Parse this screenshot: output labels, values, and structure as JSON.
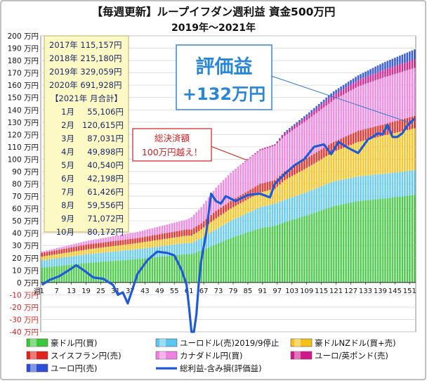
{
  "chart_data": {
    "type": "bar",
    "title": "【毎週更新】ループイフダン週利益 資金500万円",
    "subtitle": "2019年〜2021年",
    "y_unit": "万円",
    "ylim": [
      -40,
      200
    ],
    "ytick_step": 10,
    "x_tick_labels": [
      "1",
      "7",
      "13",
      "19",
      "25",
      "31",
      "37",
      "43",
      "49",
      "55",
      "61",
      "67",
      "73",
      "79",
      "85",
      "91",
      "97",
      "103",
      "109",
      "115",
      "121",
      "127",
      "133",
      "139",
      "145",
      "151"
    ],
    "week_count": 153,
    "stack_checkpoints": {
      "weeks": [
        1,
        20,
        40,
        60,
        62,
        66,
        72,
        78,
        90,
        96,
        100,
        110,
        120,
        130,
        140,
        153
      ],
      "aud": [
        12,
        16,
        19,
        23,
        23,
        26,
        31,
        36,
        44,
        46,
        49,
        55,
        62,
        66,
        68,
        71
      ],
      "eur_sell": [
        6,
        7,
        8,
        9,
        9,
        10,
        12,
        14,
        17,
        18,
        18,
        19,
        20,
        20,
        20,
        20
      ],
      "audnzd": [
        3,
        4,
        5,
        6,
        6,
        7,
        9,
        10,
        12,
        12,
        16,
        20,
        24,
        28,
        31,
        34
      ],
      "chf": [
        3,
        4,
        4,
        5,
        5,
        5,
        6,
        6,
        7,
        7,
        7,
        8,
        8,
        9,
        9,
        10
      ],
      "cad": [
        1,
        3,
        5,
        8,
        10,
        13,
        19,
        23,
        27,
        28,
        29,
        31,
        34,
        36,
        38,
        39
      ],
      "eurgbp": [
        0,
        0,
        0,
        0,
        0,
        0,
        0,
        0,
        1,
        1,
        2,
        3,
        4,
        5,
        6,
        7
      ],
      "eur_buy": [
        0,
        0,
        0,
        0,
        0,
        0,
        0,
        0,
        0,
        0,
        1,
        2,
        3,
        4,
        6,
        8
      ]
    },
    "total_line": {
      "weeks": [
        1,
        4,
        8,
        12,
        15,
        18,
        22,
        26,
        30,
        32,
        34,
        36,
        38,
        40,
        44,
        48,
        52,
        55,
        58,
        60,
        61,
        62,
        63,
        64,
        65,
        66,
        68,
        70,
        72,
        74,
        76,
        80,
        85,
        90,
        94,
        96,
        100,
        104,
        108,
        112,
        116,
        119,
        122,
        126,
        130,
        134,
        136,
        138,
        140,
        142,
        144,
        146,
        148,
        150,
        153
      ],
      "values": [
        -2,
        2,
        5,
        10,
        14,
        10,
        4,
        3,
        -2,
        -10,
        -8,
        -17,
        -5,
        7,
        18,
        25,
        24,
        22,
        10,
        -2,
        -20,
        -40,
        -40,
        -26,
        0,
        18,
        40,
        72,
        66,
        64,
        70,
        66,
        71,
        72,
        69,
        80,
        88,
        95,
        100,
        110,
        112,
        104,
        114,
        109,
        105,
        116,
        118,
        121,
        120,
        128,
        118,
        118,
        121,
        127,
        133
      ]
    },
    "legend": [
      {
        "name": "豪ドル円(買)",
        "color": "#3cc83c"
      },
      {
        "name": "ユーロドル(売)2019/9停止",
        "color": "#5bc6ee"
      },
      {
        "name": "豪ドルNZドル(買+売)",
        "color": "#f5c018"
      },
      {
        "name": "スイスフラン円(売)",
        "color": "#e0241e"
      },
      {
        "name": "カナダドル円(買)",
        "color": "#ee82e0"
      },
      {
        "name": "ユーロ/英ポンド(売)",
        "color": "#d0198a"
      },
      {
        "name": "ユーロ円(売)",
        "color": "#2d4fd8"
      },
      {
        "name": "総利益-含み損(評価益)",
        "color": "#1f5bd6"
      }
    ],
    "annual_box": {
      "rows": [
        {
          "label": "2017年",
          "value": "115,157円"
        },
        {
          "label": "2018年",
          "value": "215,180円"
        },
        {
          "label": "2019年",
          "value": "329,059円"
        },
        {
          "label": "2020年",
          "value": "691,928円"
        }
      ],
      "monthly_header": "【2021年 月合計】",
      "months": [
        {
          "label": "1月",
          "value": "55,106円"
        },
        {
          "label": "2月",
          "value": "120,615円"
        },
        {
          "label": "3月",
          "value": "87,031円"
        },
        {
          "label": "4月",
          "value": "49,898円"
        },
        {
          "label": "5月",
          "value": "40,540円"
        },
        {
          "label": "6月",
          "value": "42,198円"
        },
        {
          "label": "7月",
          "value": "61,426円"
        },
        {
          "label": "8月",
          "value": "59,556円"
        },
        {
          "label": "9月",
          "value": "71,072円"
        },
        {
          "label": "10月",
          "value": "80,172円"
        }
      ]
    },
    "callout_settled": [
      "総決済額",
      "100万円越え！"
    ],
    "callout_eval": [
      "評価益",
      "+132万円"
    ],
    "x_axis_marker": "週"
  }
}
